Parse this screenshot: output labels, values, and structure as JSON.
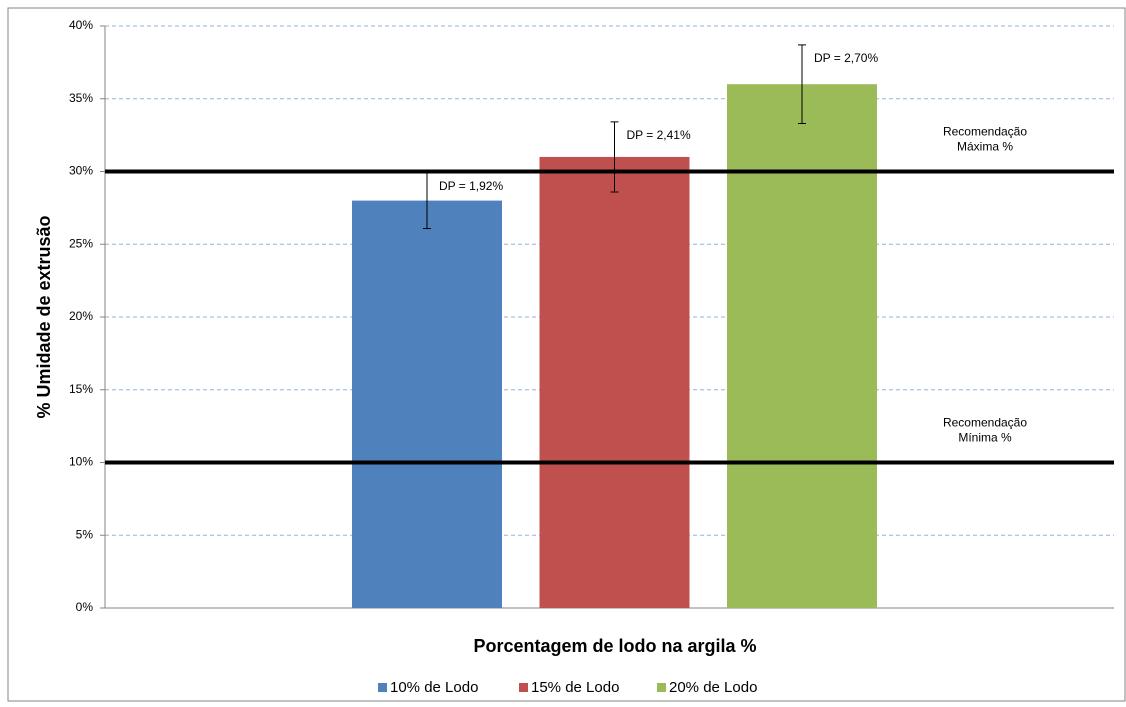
{
  "chart_data": {
    "type": "bar",
    "x_label": "Porcentagem de lodo na argila %",
    "y_label": "% Umidade de extrusão",
    "categories": [
      null
    ],
    "series": [
      {
        "name": "10% de Lodo",
        "color": "#4f81bd",
        "values": [
          28
        ],
        "errors": [
          1.92
        ],
        "error_labels": [
          "DP = 1,92%"
        ]
      },
      {
        "name": "15% de Lodo",
        "color": "#c0504d",
        "values": [
          31
        ],
        "errors": [
          2.41
        ],
        "error_labels": [
          "DP = 2,41%"
        ]
      },
      {
        "name": "20% de Lodo",
        "color": "#9bbb59",
        "values": [
          36
        ],
        "errors": [
          2.7
        ],
        "error_labels": [
          "DP = 2,70%"
        ]
      }
    ],
    "reference_lines": [
      {
        "value": 30,
        "label_lines": [
          "Recomendação",
          "Máxima %"
        ]
      },
      {
        "value": 10,
        "label_lines": [
          "Recomendação",
          "Mínima %"
        ]
      }
    ],
    "ylim": [
      0,
      40
    ],
    "yticks": [
      {
        "value": 0,
        "label": "0%"
      },
      {
        "value": 5,
        "label": "5%"
      },
      {
        "value": 10,
        "label": "10%"
      },
      {
        "value": 15,
        "label": "15%"
      },
      {
        "value": 20,
        "label": "20%"
      },
      {
        "value": 25,
        "label": "25%"
      },
      {
        "value": 30,
        "label": "30%"
      },
      {
        "value": 35,
        "label": "35%"
      },
      {
        "value": 40,
        "label": "40%"
      }
    ],
    "grid": true,
    "legend": "bottom"
  }
}
